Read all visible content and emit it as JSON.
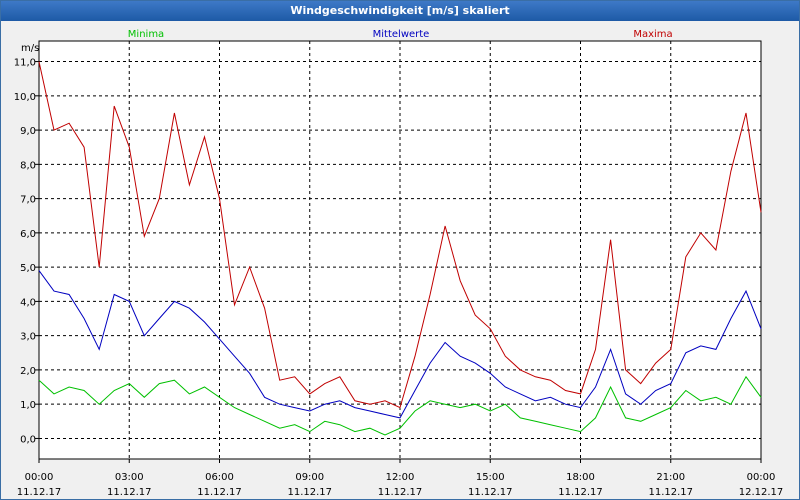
{
  "window": {
    "title": "Windgeschwindigkeit [m/s] skaliert"
  },
  "chart_data": {
    "type": "line",
    "title": "Windgeschwindigkeit [m/s] skaliert",
    "ylabel": "m/s",
    "ylim": [
      -0.6,
      11.6
    ],
    "xlim": [
      0,
      24
    ],
    "grid": true,
    "y_ticks": [
      "0,0",
      "1,0",
      "2,0",
      "3,0",
      "4,0",
      "5,0",
      "6,0",
      "7,0",
      "8,0",
      "9,0",
      "10,0",
      "11,0"
    ],
    "x_ticks": [
      {
        "time": "00:00",
        "date": "11.12.17"
      },
      {
        "time": "03:00",
        "date": "11.12.17"
      },
      {
        "time": "06:00",
        "date": "11.12.17"
      },
      {
        "time": "09:00",
        "date": "11.12.17"
      },
      {
        "time": "12:00",
        "date": "11.12.17"
      },
      {
        "time": "15:00",
        "date": "11.12.17"
      },
      {
        "time": "18:00",
        "date": "11.12.17"
      },
      {
        "time": "21:00",
        "date": "11.12.17"
      },
      {
        "time": "00:00",
        "date": "12.12.17"
      }
    ],
    "series": [
      {
        "name": "Minima",
        "color": "#00c000",
        "legend_position": "left",
        "x": [
          0,
          0.5,
          1,
          1.5,
          2,
          2.5,
          3,
          3.5,
          4,
          4.5,
          5,
          5.5,
          6,
          6.5,
          7,
          7.5,
          8,
          8.5,
          9,
          9.5,
          10,
          10.5,
          11,
          11.5,
          12,
          12.5,
          13,
          13.5,
          14,
          14.5,
          15,
          15.5,
          16,
          16.5,
          17,
          17.5,
          18,
          18.5,
          19,
          19.5,
          20,
          20.5,
          21,
          21.5,
          22,
          22.5,
          23,
          23.5,
          24
        ],
        "values": [
          1.7,
          1.3,
          1.5,
          1.4,
          1.0,
          1.4,
          1.6,
          1.2,
          1.6,
          1.7,
          1.3,
          1.5,
          1.2,
          0.9,
          0.7,
          0.5,
          0.3,
          0.4,
          0.2,
          0.5,
          0.4,
          0.2,
          0.3,
          0.1,
          0.3,
          0.8,
          1.1,
          1.0,
          0.9,
          1.0,
          0.8,
          1.0,
          0.6,
          0.5,
          0.4,
          0.3,
          0.2,
          0.6,
          1.5,
          0.6,
          0.5,
          0.7,
          0.9,
          1.4,
          1.1,
          1.2,
          1.0,
          1.8,
          1.2
        ]
      },
      {
        "name": "Mittelwerte",
        "color": "#0000c0",
        "legend_position": "center",
        "x": [
          0,
          0.5,
          1,
          1.5,
          2,
          2.5,
          3,
          3.5,
          4,
          4.5,
          5,
          5.5,
          6,
          6.5,
          7,
          7.5,
          8,
          8.5,
          9,
          9.5,
          10,
          10.5,
          11,
          11.5,
          12,
          12.5,
          13,
          13.5,
          14,
          14.5,
          15,
          15.5,
          16,
          16.5,
          17,
          17.5,
          18,
          18.5,
          19,
          19.5,
          20,
          20.5,
          21,
          21.5,
          22,
          22.5,
          23,
          23.5,
          24
        ],
        "values": [
          4.9,
          4.3,
          4.2,
          3.5,
          2.6,
          4.2,
          4.0,
          3.0,
          3.5,
          4.0,
          3.8,
          3.4,
          2.9,
          2.4,
          1.9,
          1.2,
          1.0,
          0.9,
          0.8,
          1.0,
          1.1,
          0.9,
          0.8,
          0.7,
          0.6,
          1.4,
          2.2,
          2.8,
          2.4,
          2.2,
          1.9,
          1.5,
          1.3,
          1.1,
          1.2,
          1.0,
          0.9,
          1.5,
          2.6,
          1.3,
          1.0,
          1.4,
          1.6,
          2.5,
          2.7,
          2.6,
          3.5,
          4.3,
          3.2
        ]
      },
      {
        "name": "Maxima",
        "color": "#c00000",
        "legend_position": "right",
        "x": [
          0,
          0.5,
          1,
          1.5,
          2,
          2.5,
          3,
          3.5,
          4,
          4.5,
          5,
          5.5,
          6,
          6.5,
          7,
          7.5,
          8,
          8.5,
          9,
          9.5,
          10,
          10.5,
          11,
          11.5,
          12,
          12.5,
          13,
          13.5,
          14,
          14.5,
          15,
          15.5,
          16,
          16.5,
          17,
          17.5,
          18,
          18.5,
          19,
          19.5,
          20,
          20.5,
          21,
          21.5,
          22,
          22.5,
          23,
          23.5,
          24
        ],
        "values": [
          11.0,
          9.0,
          9.2,
          8.5,
          5.0,
          9.7,
          8.5,
          5.9,
          7.0,
          9.5,
          7.4,
          8.8,
          7.0,
          3.9,
          5.0,
          3.8,
          1.7,
          1.8,
          1.3,
          1.6,
          1.8,
          1.1,
          1.0,
          1.1,
          0.9,
          2.4,
          4.2,
          6.2,
          4.6,
          3.6,
          3.2,
          2.4,
          2.0,
          1.8,
          1.7,
          1.4,
          1.3,
          2.6,
          5.8,
          2.0,
          1.6,
          2.2,
          2.6,
          5.3,
          6.0,
          5.5,
          7.8,
          9.5,
          6.6
        ]
      }
    ]
  }
}
